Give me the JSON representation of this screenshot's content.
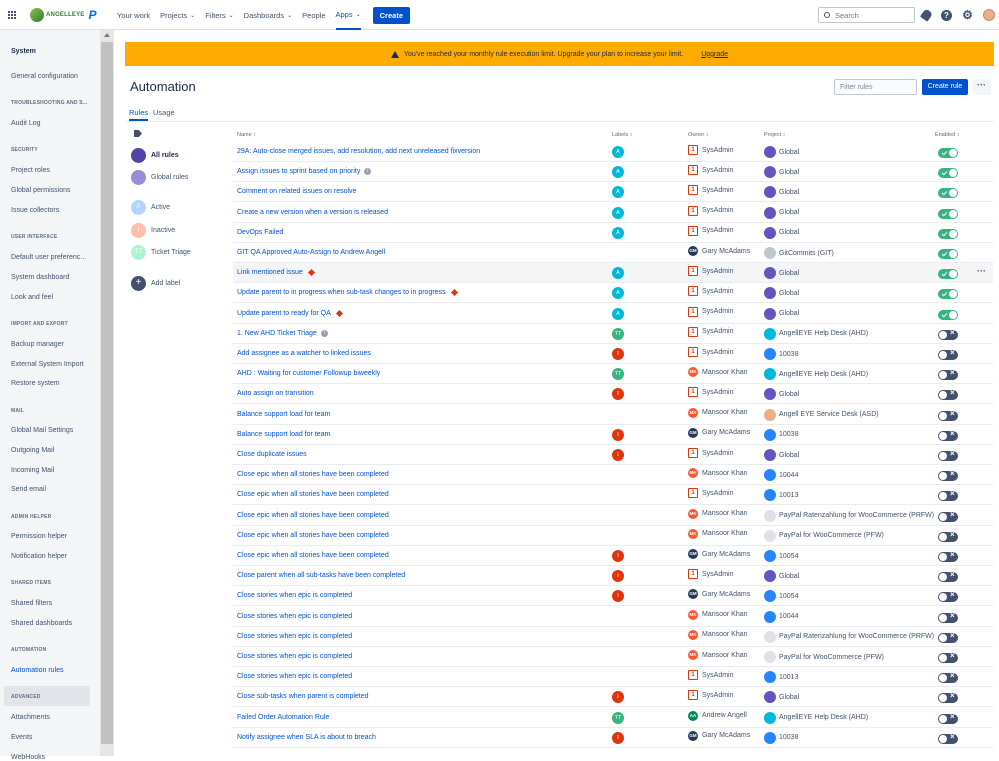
{
  "brand": {
    "logo_text": "ANGELLEYE",
    "logo_letter": "P",
    "accent": "#0052cc"
  },
  "nav": {
    "items": [
      {
        "label": "Your work",
        "caret": false
      },
      {
        "label": "Projects",
        "caret": true
      },
      {
        "label": "Filters",
        "caret": true
      },
      {
        "label": "Dashboards",
        "caret": true
      },
      {
        "label": "People",
        "caret": false
      },
      {
        "label": "Apps",
        "caret": true
      }
    ],
    "caret": "⌄",
    "create": "Create",
    "search_placeholder": "Search"
  },
  "top_icons": [
    "notifications-icon",
    "help-icon",
    "settings-icon",
    "profile-avatar"
  ],
  "top_icon_glyphs": {
    "help": "?",
    "settings": "⚙"
  },
  "sidebar": {
    "title": "System",
    "sections": [
      {
        "items": [
          "General configuration"
        ]
      },
      {
        "heading": "TROUBLESHOOTING AND S...",
        "items": [
          "Audit Log"
        ]
      },
      {
        "heading": "SECURITY",
        "items": [
          "Project roles",
          "Global permissions",
          "Issue collectors"
        ]
      },
      {
        "heading": "USER INTERFACE",
        "items": [
          "Default user preferenc...",
          "System dashboard",
          "Look and feel"
        ]
      },
      {
        "heading": "IMPORT AND EXPORT",
        "items": [
          "Backup manager",
          "External System Import",
          "Restore system"
        ]
      },
      {
        "heading": "MAIL",
        "items": [
          "Global Mail Settings",
          "Outgoing Mail",
          "Incoming Mail",
          "Send email"
        ]
      },
      {
        "heading": "ADMIN HELPER",
        "items": [
          "Permission helper",
          "Notification helper"
        ]
      },
      {
        "heading": "SHARED ITEMS",
        "items": [
          "Shared filters",
          "Shared dashboards"
        ]
      },
      {
        "heading": "AUTOMATION",
        "items": [
          "Automation rules"
        ]
      },
      {
        "heading": "ADVANCED",
        "items": [
          "Attachments",
          "Events",
          "WebHooks"
        ]
      }
    ]
  },
  "banner": {
    "text": "You've reached your monthly rule execution limit. Upgrade your plan to increase your limit.",
    "link": "Upgrade"
  },
  "page": {
    "title": "Automation",
    "filter_placeholder": "Filter rules",
    "create_rule": "Create rule",
    "more": "···",
    "tabs": [
      "Rules",
      "Usage"
    ]
  },
  "labels": [
    {
      "text": "All rules",
      "letter": "",
      "color": "#5243aa",
      "selected": true
    },
    {
      "text": "Global rules",
      "letter": "",
      "color": "#998dd9",
      "selected": false
    },
    {
      "text": "Active",
      "letter": "A",
      "color": "#b3d4ff",
      "selected": false
    },
    {
      "text": "Inactive",
      "letter": "I",
      "color": "#ffbdad",
      "selected": false
    },
    {
      "text": "Ticket Triage",
      "letter": "TT",
      "color": "#abf5d1",
      "selected": false
    },
    {
      "text": "Add label",
      "letter": "+",
      "color": "#42526e",
      "selected": false
    }
  ],
  "table": {
    "headers": [
      "Name",
      "Labels",
      "Owner",
      "Project",
      "Enabled"
    ],
    "sort_mark": "↕",
    "row_more": "···",
    "rows": [
      {
        "name": "29A: Auto-close merged issues, add resolution, add next unreleased fixversion",
        "flag": "",
        "label": "A",
        "owner": "SysAdmin",
        "project": "Global",
        "on": true
      },
      {
        "name": "Assign issues to sprint based on priority",
        "flag": "info",
        "label": "A",
        "owner": "SysAdmin",
        "project": "Global",
        "on": true
      },
      {
        "name": "Comment on related issues on resolve",
        "flag": "",
        "label": "A",
        "owner": "SysAdmin",
        "project": "Global",
        "on": true
      },
      {
        "name": "Create a new version when a version is released",
        "flag": "",
        "label": "A",
        "owner": "SysAdmin",
        "project": "Global",
        "on": true
      },
      {
        "name": "DevOps Failed",
        "flag": "",
        "label": "A",
        "owner": "SysAdmin",
        "project": "Global",
        "on": true
      },
      {
        "name": "GIT QA Approved Auto-Assign to Andrew Angell",
        "flag": "",
        "label": "",
        "owner": "Gary McAdams",
        "project": "GitCommits (GIT)",
        "on": true
      },
      {
        "name": "Link mentioned issue",
        "flag": "err",
        "label": "A",
        "owner": "SysAdmin",
        "project": "Global",
        "on": true,
        "hover": true
      },
      {
        "name": "Update parent to in progress when sub-task changes to in progress",
        "flag": "err",
        "label": "A",
        "owner": "SysAdmin",
        "project": "Global",
        "on": true
      },
      {
        "name": "Update parent to ready for QA",
        "flag": "err",
        "label": "A",
        "owner": "SysAdmin",
        "project": "Global",
        "on": true
      },
      {
        "name": "1. New AHD Ticket Triage",
        "flag": "info",
        "label": "TT",
        "owner": "SysAdmin",
        "project": "AngellEYE Help Desk (AHD)",
        "on": false
      },
      {
        "name": "Add assignee as a watcher to linked issues",
        "flag": "",
        "label": "I",
        "owner": "SysAdmin",
        "project": "10038",
        "on": false
      },
      {
        "name": "AHD : Waiting for customer Followup biweekly",
        "flag": "",
        "label": "TT",
        "owner": "Mansoor Khan",
        "project": "AngellEYE Help Desk (AHD)",
        "on": false
      },
      {
        "name": "Auto assign on transition",
        "flag": "",
        "label": "I",
        "owner": "SysAdmin",
        "project": "Global",
        "on": false
      },
      {
        "name": "Balance support load for team",
        "flag": "",
        "label": "",
        "owner": "Mansoor Khan",
        "project": "Angell EYE Service Desk (ASD)",
        "on": false
      },
      {
        "name": "Balance support load for team",
        "flag": "",
        "label": "I",
        "owner": "Gary McAdams",
        "project": "10038",
        "on": false
      },
      {
        "name": "Close duplicate issues",
        "flag": "",
        "label": "I",
        "owner": "SysAdmin",
        "project": "Global",
        "on": false
      },
      {
        "name": "Close epic when all stories have been completed",
        "flag": "",
        "label": "",
        "owner": "Mansoor Khan",
        "project": "10044",
        "on": false
      },
      {
        "name": "Close epic when all stories have been completed",
        "flag": "",
        "label": "",
        "owner": "SysAdmin",
        "project": "10013",
        "on": false
      },
      {
        "name": "Close epic when all stories have been completed",
        "flag": "",
        "label": "",
        "owner": "Mansoor Khan",
        "project": "PayPal Ratenzahlung for WooCommerce (PRFW)",
        "on": false
      },
      {
        "name": "Close epic when all stories have been completed",
        "flag": "",
        "label": "",
        "owner": "Mansoor Khan",
        "project": "PayPal for WooCommerce (PFW)",
        "on": false
      },
      {
        "name": "Close epic when all stories have been completed",
        "flag": "",
        "label": "I",
        "owner": "Gary McAdams",
        "project": "10054",
        "on": false
      },
      {
        "name": "Close parent when all sub-tasks have been completed",
        "flag": "",
        "label": "I",
        "owner": "SysAdmin",
        "project": "Global",
        "on": false
      },
      {
        "name": "Close stories when epic is completed",
        "flag": "",
        "label": "I",
        "owner": "Gary McAdams",
        "project": "10054",
        "on": false
      },
      {
        "name": "Close stories when epic is completed",
        "flag": "",
        "label": "",
        "owner": "Mansoor Khan",
        "project": "10044",
        "on": false
      },
      {
        "name": "Close stories when epic is completed",
        "flag": "",
        "label": "",
        "owner": "Mansoor Khan",
        "project": "PayPal Ratenzahlung for WooCommerce (PRFW)",
        "on": false
      },
      {
        "name": "Close stories when epic is completed",
        "flag": "",
        "label": "",
        "owner": "Mansoor Khan",
        "project": "PayPal for WooCommerce (PFW)",
        "on": false
      },
      {
        "name": "Close stories when epic is completed",
        "flag": "",
        "label": "",
        "owner": "SysAdmin",
        "project": "10013",
        "on": false
      },
      {
        "name": "Close sub-tasks when parent is completed",
        "flag": "",
        "label": "I",
        "owner": "SysAdmin",
        "project": "Global",
        "on": false
      },
      {
        "name": "Failed Order Automation Rule",
        "flag": "",
        "label": "TT",
        "owner": "Andrew Angell",
        "project": "AngellEYE Help Desk (AHD)",
        "on": false
      },
      {
        "name": "Notify assignee when SLA is about to breach",
        "flag": "",
        "label": "I",
        "owner": "Gary McAdams",
        "project": "10038",
        "on": false
      }
    ]
  },
  "colors": {
    "label_A": "#00b8d9",
    "label_I": "#de350b",
    "label_TT": "#36b37e",
    "owner_GM": "#253858",
    "owner_MK": "#ff5630",
    "owner_AA": "#00875a",
    "toggle_on": "#36b37e",
    "toggle_off": "#42526e"
  },
  "owner_initials": {
    "SysAdmin": "S",
    "Gary McAdams": "GM",
    "Mansoor Khan": "MK",
    "Andrew Angell": "AA"
  }
}
